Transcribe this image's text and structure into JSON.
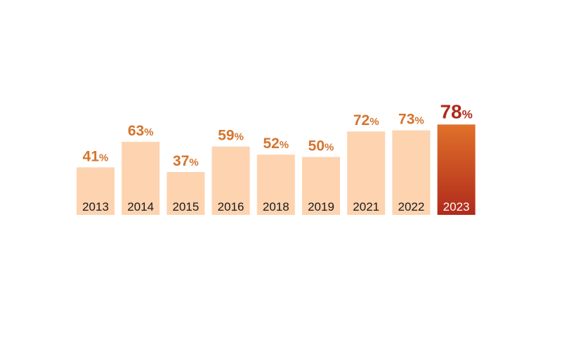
{
  "chart_data": {
    "type": "bar",
    "categories": [
      "2013",
      "2014",
      "2015",
      "2016",
      "2018",
      "2019",
      "2021",
      "2022",
      "2023"
    ],
    "values": [
      41,
      63,
      37,
      59,
      52,
      50,
      72,
      73,
      78
    ],
    "value_labels": [
      "41",
      "63",
      "37",
      "59",
      "52",
      "50",
      "72",
      "73",
      "78"
    ],
    "unit_suffix": "%",
    "highlight_index": 8,
    "ylim": [
      0,
      100
    ],
    "grid": false,
    "legend": "none",
    "colors": {
      "bar": "#fdd3b0",
      "highlight_top": "#e0712a",
      "highlight_bottom": "#b02a1c",
      "value_label": "#d4742d",
      "highlight_value_label": "#b02a1c",
      "year_label": "#1a1a1a",
      "highlight_year_label": "#ffffff"
    }
  }
}
